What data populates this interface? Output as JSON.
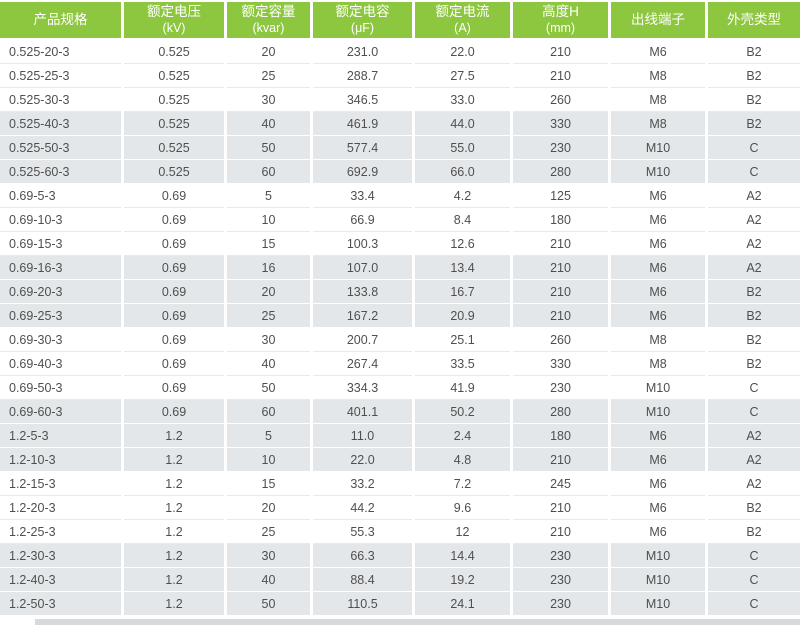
{
  "table": {
    "columns": [
      {
        "key": "model",
        "label": "产品规格",
        "unit": ""
      },
      {
        "key": "rated-voltage",
        "label": "额定电压",
        "unit": "(kV)"
      },
      {
        "key": "rated-capacity",
        "label": "额定容量",
        "unit": "(kvar)"
      },
      {
        "key": "rated-capacitance",
        "label": "额定电容",
        "unit": "(μF)"
      },
      {
        "key": "rated-current",
        "label": "额定电流",
        "unit": "(A)"
      },
      {
        "key": "height-h",
        "label": "高度H",
        "unit": "(mm)"
      },
      {
        "key": "outlet-terminal",
        "label": "出线端子",
        "unit": ""
      },
      {
        "key": "shell-type",
        "label": "外壳类型",
        "unit": ""
      }
    ],
    "rows": [
      [
        "0.525-20-3",
        "0.525",
        "20",
        "231.0",
        "22.0",
        "210",
        "M6",
        "B2"
      ],
      [
        "0.525-25-3",
        "0.525",
        "25",
        "288.7",
        "27.5",
        "210",
        "M8",
        "B2"
      ],
      [
        "0.525-30-3",
        "0.525",
        "30",
        "346.5",
        "33.0",
        "260",
        "M8",
        "B2"
      ],
      [
        "0.525-40-3",
        "0.525",
        "40",
        "461.9",
        "44.0",
        "330",
        "M8",
        "B2"
      ],
      [
        "0.525-50-3",
        "0.525",
        "50",
        "577.4",
        "55.0",
        "230",
        "M10",
        "C"
      ],
      [
        "0.525-60-3",
        "0.525",
        "60",
        "692.9",
        "66.0",
        "280",
        "M10",
        "C"
      ],
      [
        "0.69-5-3",
        "0.69",
        "5",
        "33.4",
        "4.2",
        "125",
        "M6",
        "A2"
      ],
      [
        "0.69-10-3",
        "0.69",
        "10",
        "66.9",
        "8.4",
        "180",
        "M6",
        "A2"
      ],
      [
        "0.69-15-3",
        "0.69",
        "15",
        "100.3",
        "12.6",
        "210",
        "M6",
        "A2"
      ],
      [
        "0.69-16-3",
        "0.69",
        "16",
        "107.0",
        "13.4",
        "210",
        "M6",
        "A2"
      ],
      [
        "0.69-20-3",
        "0.69",
        "20",
        "133.8",
        "16.7",
        "210",
        "M6",
        "B2"
      ],
      [
        "0.69-25-3",
        "0.69",
        "25",
        "167.2",
        "20.9",
        "210",
        "M6",
        "B2"
      ],
      [
        "0.69-30-3",
        "0.69",
        "30",
        "200.7",
        "25.1",
        "260",
        "M8",
        "B2"
      ],
      [
        "0.69-40-3",
        "0.69",
        "40",
        "267.4",
        "33.5",
        "330",
        "M8",
        "B2"
      ],
      [
        "0.69-50-3",
        "0.69",
        "50",
        "334.3",
        "41.9",
        "230",
        "M10",
        "C"
      ],
      [
        "0.69-60-3",
        "0.69",
        "60",
        "401.1",
        "50.2",
        "280",
        "M10",
        "C"
      ],
      [
        "1.2-5-3",
        "1.2",
        "5",
        "11.0",
        "2.4",
        "180",
        "M6",
        "A2"
      ],
      [
        "1.2-10-3",
        "1.2",
        "10",
        "22.0",
        "4.8",
        "210",
        "M6",
        "A2"
      ],
      [
        "1.2-15-3",
        "1.2",
        "15",
        "33.2",
        "7.2",
        "245",
        "M6",
        "A2"
      ],
      [
        "1.2-20-3",
        "1.2",
        "20",
        "44.2",
        "9.6",
        "210",
        "M6",
        "B2"
      ],
      [
        "1.2-25-3",
        "1.2",
        "25",
        "55.3",
        "12",
        "210",
        "M6",
        "B2"
      ],
      [
        "1.2-30-3",
        "1.2",
        "30",
        "66.3",
        "14.4",
        "230",
        "M10",
        "C"
      ],
      [
        "1.2-40-3",
        "1.2",
        "40",
        "88.4",
        "19.2",
        "230",
        "M10",
        "C"
      ],
      [
        "1.2-50-3",
        "1.2",
        "50",
        "110.5",
        "24.1",
        "230",
        "M10",
        "C"
      ]
    ],
    "stripe_group_size": 3
  },
  "colors": {
    "header_green": "#8dc63f",
    "header_text": "#ffffff",
    "stripe_gray": "#e4e7e9",
    "body_text": "#4f4f4f",
    "row_separator": "#e9e9e9",
    "bottom_strip": "#d6dadd"
  }
}
